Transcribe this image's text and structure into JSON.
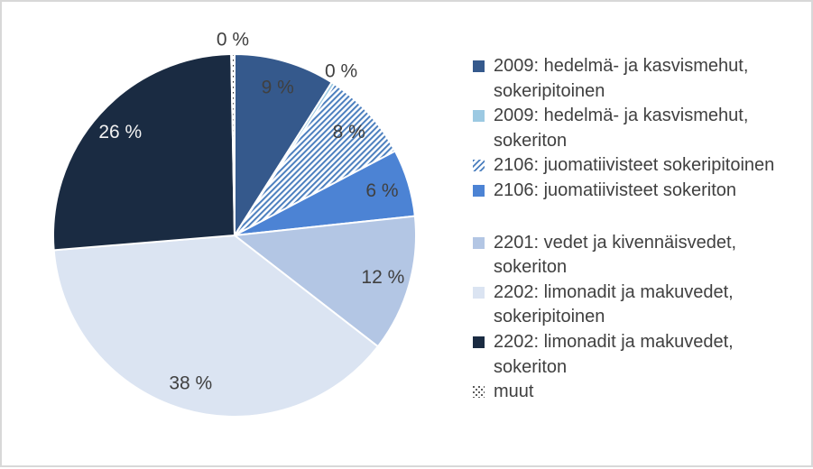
{
  "chart_data": {
    "type": "pie",
    "title": "",
    "legend_position": "right",
    "direction": "clockwise",
    "start_angle_deg": 0,
    "data_labels": "percent",
    "slice_border_color": "#ffffff",
    "label_text_color": "#404040",
    "slices": [
      {
        "legend_label": "2009: hedelmä- ja kasvismehut, sokeripitoinen",
        "pct_label": "9 %",
        "value": 9.0,
        "fill": "solid",
        "color": "#35598C",
        "label_pos": "inside",
        "label_color": "#404040"
      },
      {
        "legend_label": "2009: hedelmä- ja kasvismehut, sokeriton",
        "pct_label": "0 %",
        "value": 0.3,
        "fill": "solid",
        "color": "#9CC9E2",
        "label_pos": "outside",
        "label_color": "#404040"
      },
      {
        "legend_label": "2106: juomatiivisteet sokeripitoinen",
        "pct_label": "8 %",
        "value": 8.0,
        "fill": "hatch",
        "color": "#4A7EBE",
        "label_pos": "inside",
        "label_color": "#404040"
      },
      {
        "legend_label": "2106: juomatiivisteet sokeriton",
        "pct_label": "6 %",
        "value": 6.0,
        "fill": "solid",
        "color": "#4C83D4",
        "label_pos": "inside",
        "label_color": "#404040"
      },
      {
        "legend_label": "2201: vedet ja kivennäisvedet, sokeriton",
        "pct_label": "12 %",
        "value": 12.2,
        "fill": "solid",
        "color": "#B3C6E4",
        "label_pos": "inside",
        "label_color": "#404040"
      },
      {
        "legend_label": "2202: limonadit ja makuvedet, sokeripitoinen",
        "pct_label": "38 %",
        "value": 38.2,
        "fill": "solid",
        "color": "#DBE4F2",
        "label_pos": "inside",
        "label_color": "#404040"
      },
      {
        "legend_label": "2202: limonadit ja makuvedet, sokeriton",
        "pct_label": "26 %",
        "value": 26.0,
        "fill": "solid",
        "color": "#1A2B42",
        "label_pos": "inside",
        "label_color": "#F2F2F2"
      },
      {
        "legend_label": "muut",
        "pct_label": "0 %",
        "value": 0.3,
        "fill": "dots",
        "color": "#262626",
        "label_pos": "outside",
        "label_color": "#404040"
      }
    ]
  }
}
